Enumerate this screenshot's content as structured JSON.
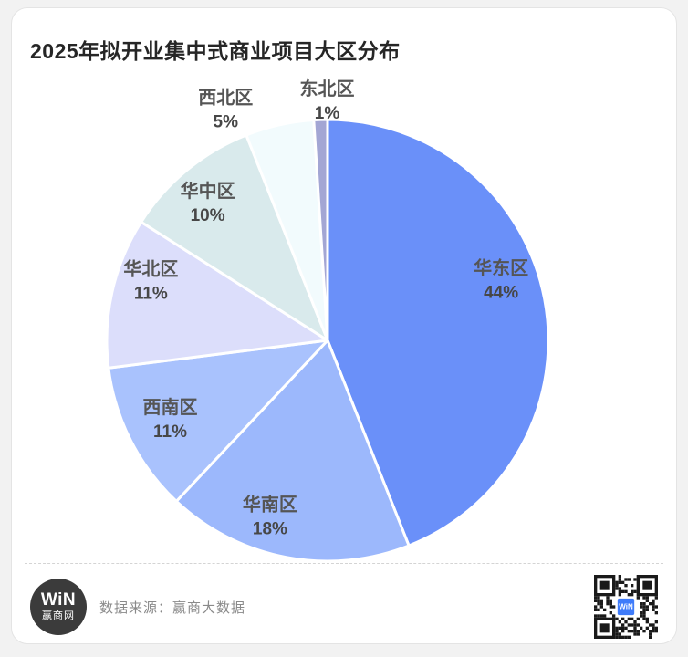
{
  "page": {
    "background_color": "#f2f2f2",
    "card_background_color": "#ffffff"
  },
  "header": {
    "title": "2025年拟开业集中式商业项目大区分布"
  },
  "chart_data": {
    "type": "pie",
    "title": "2025年拟开业集中式商业项目大区分布",
    "start_angle": "12-o-clock",
    "direction": "clockwise",
    "legend_position": "none",
    "label_style": "name-and-percent, dark gray, inside for large slices / outside for small top slices",
    "slice_border_color": "#ffffff",
    "slices": [
      {
        "label": "华东区",
        "value_pct": 44,
        "color": "#6a90f9"
      },
      {
        "label": "华南区",
        "value_pct": 18,
        "color": "#9cb8fc"
      },
      {
        "label": "西南区",
        "value_pct": 11,
        "color": "#a9c2fd"
      },
      {
        "label": "华北区",
        "value_pct": 11,
        "color": "#dcdefb"
      },
      {
        "label": "华中区",
        "value_pct": 10,
        "color": "#d9eaec"
      },
      {
        "label": "西北区",
        "value_pct": 5,
        "color": "#f2fbfd"
      },
      {
        "label": "东北区",
        "value_pct": 1,
        "color": "#a3a6d4"
      }
    ]
  },
  "footer": {
    "source_text": "数据来源：赢商大数据",
    "logo": {
      "line1": "WiN",
      "line2": "赢商网"
    },
    "qr_center_color": "#3e7bfa",
    "qr_center_label": "WiN"
  }
}
